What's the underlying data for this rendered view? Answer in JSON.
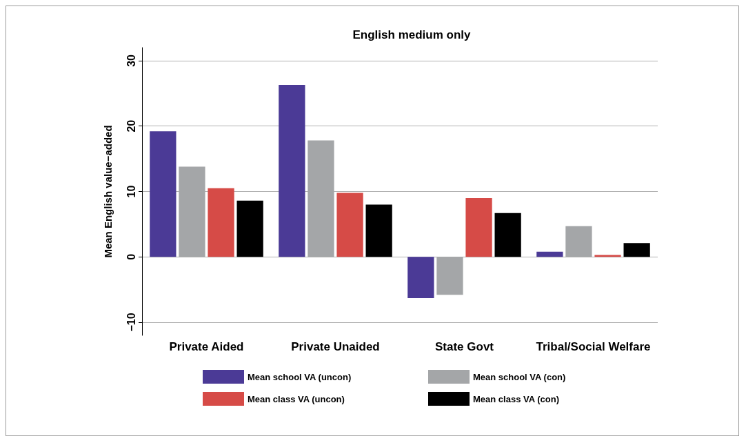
{
  "chart_data": {
    "type": "bar",
    "title": "English medium only",
    "ylabel": "Mean English value−added",
    "categories": [
      "Private Aided",
      "Private Unaided",
      "State Govt",
      "Tribal/Social Welfare"
    ],
    "series": [
      {
        "name": "Mean school VA (uncon)",
        "color": "#4b3a96",
        "values": [
          19.2,
          26.3,
          -6.3,
          0.8
        ]
      },
      {
        "name": "Mean school VA (con)",
        "color": "#a4a6a8",
        "values": [
          13.8,
          17.8,
          -5.8,
          4.7
        ]
      },
      {
        "name": "Mean class VA (uncon)",
        "color": "#d64b47",
        "values": [
          10.5,
          9.8,
          9.0,
          0.3
        ]
      },
      {
        "name": "Mean class VA (con)",
        "color": "#000000",
        "values": [
          8.6,
          8.0,
          6.7,
          2.1
        ]
      }
    ],
    "ylim": [
      -12,
      32
    ],
    "yticks": [
      -10,
      0,
      10,
      20,
      30
    ],
    "grid": "y",
    "legend": "bottom"
  }
}
